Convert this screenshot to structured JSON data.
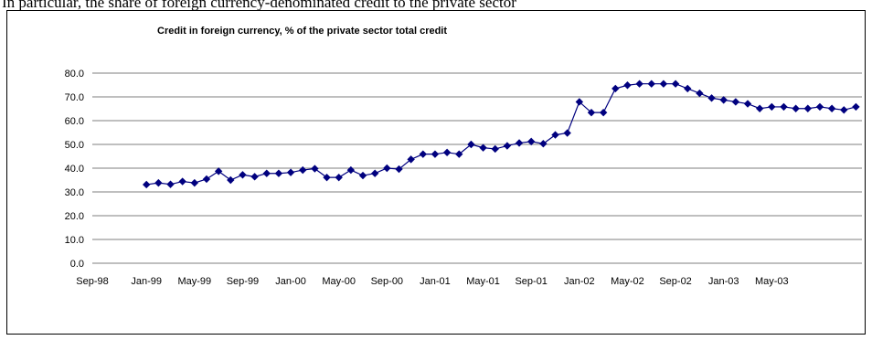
{
  "header_text": "In particular, the share of foreign currency-denominated credit to the private sector",
  "chart_data": {
    "type": "line",
    "title": "Credit in foreign currency, % of the private sector total credit",
    "xlabel": "",
    "ylabel": "",
    "ylim": [
      0,
      80
    ],
    "yticks": [
      "0.0",
      "10.0",
      "20.0",
      "30.0",
      "40.0",
      "50.0",
      "60.0",
      "70.0",
      "80.0"
    ],
    "x_tick_labels": [
      "Sep-98",
      "Jan-99",
      "May-99",
      "Sep-99",
      "Jan-00",
      "May-00",
      "Sep-00",
      "Jan-01",
      "May-01",
      "Sep-01",
      "Jan-02",
      "May-02",
      "Sep-02",
      "Jan-03",
      "May-03"
    ],
    "grid": true,
    "legend": "none",
    "series": [
      {
        "color": "#00007f",
        "marker": "diamond",
        "x": [
          "Jan-99",
          "Feb-99",
          "Mar-99",
          "Apr-99",
          "May-99",
          "Jun-99",
          "Jul-99",
          "Aug-99",
          "Sep-99",
          "Oct-99",
          "Nov-99",
          "Dec-99",
          "Jan-00",
          "Feb-00",
          "Mar-00",
          "Apr-00",
          "May-00",
          "Jun-00",
          "Jul-00",
          "Aug-00",
          "Sep-00",
          "Oct-00",
          "Nov-00",
          "Dec-00",
          "Jan-01",
          "Feb-01",
          "Mar-01",
          "Apr-01",
          "May-01",
          "Jun-01",
          "Jul-01",
          "Aug-01",
          "Sep-01",
          "Oct-01",
          "Nov-01",
          "Dec-01",
          "Jan-02",
          "Feb-02",
          "Mar-02",
          "Apr-02",
          "May-02",
          "Jun-02",
          "Jul-02",
          "Aug-02",
          "Sep-02",
          "Oct-02",
          "Nov-02",
          "Dec-02",
          "Jan-03",
          "Feb-03",
          "Mar-03",
          "Apr-03",
          "May-03",
          "Jun-03",
          "Jul-03",
          "Aug-03",
          "Sep-03",
          "Oct-03",
          "Nov-03",
          "Dec-03"
        ],
        "values": [
          33.1,
          33.8,
          33.2,
          34.4,
          33.8,
          35.4,
          38.7,
          35.0,
          37.2,
          36.4,
          37.8,
          37.8,
          38.2,
          39.2,
          39.8,
          36.1,
          36.1,
          39.2,
          36.9,
          37.8,
          40.0,
          39.6,
          43.7,
          45.9,
          45.9,
          46.6,
          45.9,
          50.0,
          48.6,
          48.1,
          49.4,
          50.6,
          51.2,
          50.3,
          54.0,
          54.8,
          67.9,
          63.4,
          63.4,
          73.5,
          74.9,
          75.5,
          75.5,
          75.5,
          75.5,
          73.5,
          71.5,
          69.5,
          68.7,
          67.9,
          67.1,
          65.1,
          65.8,
          65.8,
          65.1,
          65.1,
          65.8,
          65.1,
          64.5,
          65.8
        ]
      }
    ]
  }
}
